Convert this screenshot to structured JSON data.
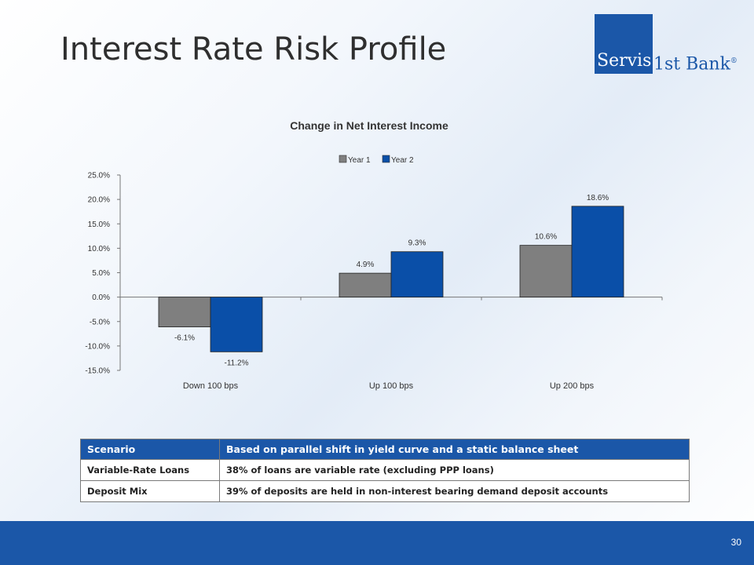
{
  "slide": {
    "title": "Interest Rate Risk Profile",
    "page_number": "30"
  },
  "logo": {
    "word1": "Servis",
    "word2": "1st Bank",
    "reg_mark": "®"
  },
  "colors": {
    "brand_blue": "#1b57a8",
    "year1_gray": "#7f7f7f",
    "year2_blue": "#0a4fa8"
  },
  "chart_data": {
    "type": "bar",
    "title": "Change in Net Interest Income",
    "categories": [
      "Down 100 bps",
      "Up 100 bps",
      "Up 200 bps"
    ],
    "series": [
      {
        "name": "Year 1",
        "values": [
          -6.1,
          4.9,
          10.6
        ],
        "labels": [
          "-6.1%",
          "4.9%",
          "10.6%"
        ],
        "color": "#7f7f7f"
      },
      {
        "name": "Year 2",
        "values": [
          -11.2,
          9.3,
          18.6
        ],
        "labels": [
          "-11.2%",
          "9.3%",
          "18.6%"
        ],
        "color": "#0a4fa8"
      }
    ],
    "ylim": [
      -15,
      25
    ],
    "yticks": [
      25,
      20,
      15,
      10,
      5,
      0,
      -5,
      -10,
      -15
    ],
    "ytick_labels": [
      "25.0%",
      "20.0%",
      "15.0%",
      "10.0%",
      "5.0%",
      "0.0%",
      "-5.0%",
      "-10.0%",
      "-15.0%"
    ],
    "legend_position": "top-center",
    "grid": false
  },
  "table": {
    "header": [
      "Scenario",
      "Based on parallel shift in yield curve and a static balance sheet"
    ],
    "rows": [
      [
        "Variable-Rate Loans",
        "38% of loans are variable rate (excluding PPP loans)"
      ],
      [
        "Deposit Mix",
        "39% of deposits are held in non-interest bearing demand deposit accounts"
      ]
    ]
  }
}
